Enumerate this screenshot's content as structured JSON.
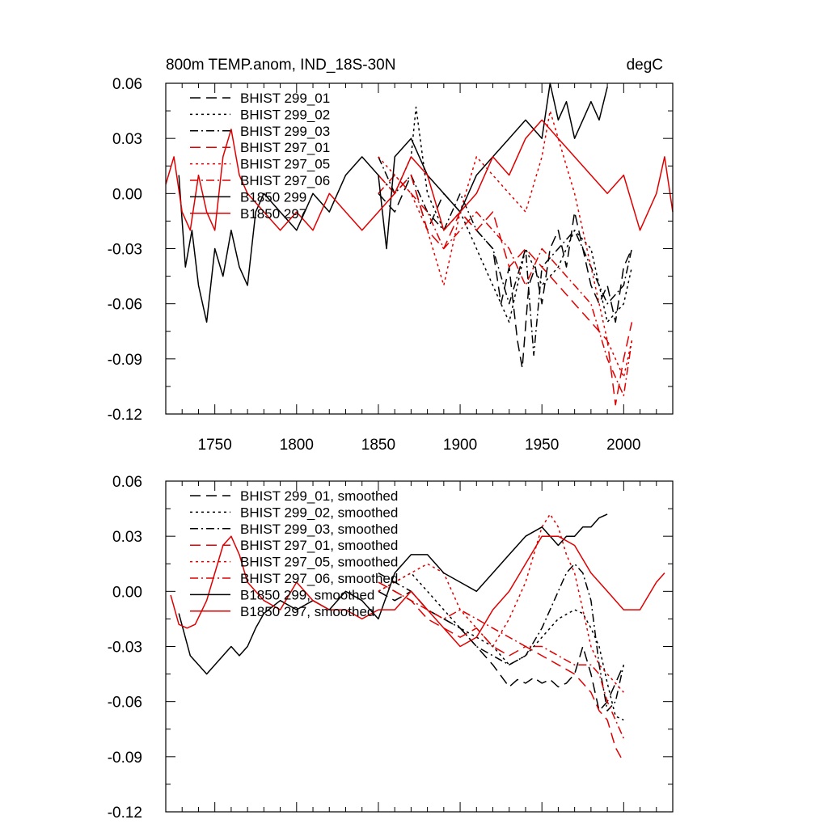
{
  "figure": {
    "title_left": "800m TEMP.anom, IND_18S-30N",
    "title_right": "degC"
  },
  "chart_data": [
    {
      "type": "line",
      "title": "800m TEMP.anom, IND_18S-30N",
      "units": "degC",
      "xlabel": "",
      "ylabel": "",
      "xlim": [
        1720,
        2030
      ],
      "ylim": [
        -0.12,
        0.06
      ],
      "xticks": [
        1750,
        1800,
        1850,
        1900,
        1950,
        2000
      ],
      "xtick_labels": [
        "1750",
        "1800",
        "1850",
        "1900",
        "1950",
        "2000"
      ],
      "yticks": [
        -0.12,
        -0.09,
        -0.06,
        -0.03,
        0.0,
        0.03,
        0.06
      ],
      "ytick_labels": [
        "-0.12",
        "-0.09",
        "-0.06",
        "-0.03",
        "0.00",
        "0.03",
        "0.06"
      ],
      "legend_position": "top-left",
      "series": [
        {
          "name": "BHIST 299_01",
          "color": "#000000",
          "dash": "long-dash",
          "x": [
            1850,
            1860,
            1870,
            1880,
            1890,
            1900,
            1910,
            1920,
            1925,
            1930,
            1935,
            1938,
            1942,
            1946,
            1950,
            1955,
            1960,
            1965,
            1970,
            1975,
            1980,
            1985,
            1990,
            1995,
            2000,
            2005
          ],
          "y": [
            0.0,
            -0.01,
            0.01,
            -0.02,
            0.0,
            -0.01,
            -0.02,
            -0.03,
            -0.06,
            -0.04,
            -0.08,
            -0.095,
            -0.05,
            -0.04,
            -0.06,
            -0.03,
            -0.02,
            -0.04,
            -0.01,
            -0.03,
            -0.05,
            -0.06,
            -0.05,
            -0.07,
            -0.04,
            -0.03
          ]
        },
        {
          "name": "BHIST 299_02",
          "color": "#000000",
          "dash": "dotted",
          "x": [
            1850,
            1860,
            1870,
            1873,
            1880,
            1890,
            1900,
            1910,
            1920,
            1930,
            1940,
            1950,
            1960,
            1970,
            1980,
            1990,
            2000,
            2005
          ],
          "y": [
            0.01,
            0.0,
            0.02,
            0.047,
            0.0,
            -0.02,
            -0.01,
            -0.03,
            -0.05,
            -0.07,
            -0.03,
            -0.05,
            -0.04,
            -0.02,
            -0.03,
            -0.07,
            -0.06,
            -0.04
          ]
        },
        {
          "name": "BHIST 299_03",
          "color": "#000000",
          "dash": "dash-dot",
          "x": [
            1850,
            1860,
            1870,
            1880,
            1890,
            1900,
            1910,
            1920,
            1930,
            1940,
            1945,
            1950,
            1960,
            1970,
            1980,
            1990,
            2000,
            2005
          ],
          "y": [
            0.02,
            0.0,
            0.01,
            -0.01,
            -0.02,
            0.0,
            -0.02,
            -0.03,
            -0.06,
            -0.03,
            -0.088,
            -0.04,
            -0.03,
            -0.02,
            -0.04,
            -0.06,
            -0.05,
            -0.03
          ]
        },
        {
          "name": "BHIST 297_01",
          "color": "#e00000",
          "dash": "long-dash",
          "x": [
            1850,
            1860,
            1870,
            1880,
            1890,
            1900,
            1910,
            1920,
            1930,
            1940,
            1950,
            1960,
            1970,
            1980,
            1990,
            1995,
            2000,
            2005
          ],
          "y": [
            0.01,
            0.0,
            0.01,
            -0.02,
            -0.03,
            -0.01,
            -0.02,
            -0.01,
            -0.04,
            -0.03,
            -0.04,
            -0.05,
            -0.06,
            -0.07,
            -0.08,
            -0.115,
            -0.09,
            -0.07
          ]
        },
        {
          "name": "BHIST 297_05",
          "color": "#e00000",
          "dash": "dotted",
          "x": [
            1850,
            1860,
            1870,
            1880,
            1890,
            1900,
            1910,
            1920,
            1930,
            1940,
            1950,
            1955,
            1960,
            1970,
            1980,
            1990,
            2000,
            2005
          ],
          "y": [
            0.02,
            0.01,
            0.0,
            -0.02,
            -0.05,
            -0.01,
            0.02,
            0.01,
            0.0,
            -0.01,
            0.02,
            0.045,
            0.03,
            0.0,
            -0.04,
            -0.08,
            -0.1,
            -0.08
          ]
        },
        {
          "name": "BHIST 297_06",
          "color": "#e00000",
          "dash": "dash-dot",
          "x": [
            1850,
            1860,
            1870,
            1880,
            1890,
            1900,
            1910,
            1920,
            1930,
            1940,
            1950,
            1960,
            1970,
            1980,
            1990,
            2000,
            2005
          ],
          "y": [
            0.0,
            0.01,
            0.0,
            -0.01,
            -0.03,
            -0.02,
            -0.01,
            -0.02,
            -0.03,
            -0.05,
            -0.03,
            -0.04,
            -0.05,
            -0.06,
            -0.09,
            -0.11,
            -0.08
          ]
        },
        {
          "name": "B1850 299",
          "color": "#000000",
          "dash": "solid",
          "x": [
            1728,
            1732,
            1736,
            1740,
            1745,
            1750,
            1755,
            1760,
            1765,
            1770,
            1775,
            1780,
            1790,
            1800,
            1810,
            1820,
            1830,
            1840,
            1850,
            1855,
            1860,
            1870,
            1880,
            1890,
            1900,
            1910,
            1920,
            1930,
            1940,
            1950,
            1955,
            1960,
            1965,
            1970,
            1975,
            1980,
            1985,
            1990
          ],
          "y": [
            0.01,
            -0.04,
            -0.02,
            -0.05,
            -0.07,
            -0.03,
            -0.045,
            -0.02,
            -0.04,
            -0.05,
            -0.01,
            0.0,
            -0.01,
            -0.02,
            0.0,
            -0.01,
            0.01,
            0.02,
            0.01,
            -0.03,
            0.02,
            0.03,
            0.01,
            0.0,
            -0.01,
            0.01,
            0.02,
            0.03,
            0.04,
            0.03,
            0.06,
            0.04,
            0.05,
            0.03,
            0.04,
            0.05,
            0.04,
            0.058
          ]
        },
        {
          "name": "B1850 297",
          "color": "#e00000",
          "dash": "solid",
          "x": [
            1720,
            1725,
            1730,
            1735,
            1740,
            1745,
            1750,
            1755,
            1760,
            1765,
            1770,
            1780,
            1790,
            1800,
            1810,
            1820,
            1830,
            1840,
            1850,
            1860,
            1870,
            1880,
            1890,
            1900,
            1910,
            1920,
            1930,
            1940,
            1950,
            1960,
            1970,
            1980,
            1990,
            2000,
            2010,
            2020,
            2025,
            2030
          ],
          "y": [
            0.005,
            0.02,
            -0.01,
            -0.02,
            0.01,
            -0.01,
            -0.02,
            0.02,
            0.035,
            0.01,
            0.0,
            -0.01,
            -0.02,
            -0.01,
            -0.02,
            0.0,
            -0.01,
            -0.02,
            -0.01,
            0.0,
            0.02,
            0.01,
            -0.02,
            -0.01,
            0.0,
            0.02,
            0.01,
            0.03,
            0.04,
            0.03,
            0.02,
            0.01,
            0.0,
            0.01,
            -0.02,
            0.0,
            0.02,
            -0.01
          ]
        }
      ]
    },
    {
      "type": "line",
      "title": "",
      "xlabel": "",
      "ylabel": "",
      "xlim": [
        1720,
        2030
      ],
      "ylim": [
        -0.12,
        0.06
      ],
      "xticks": [
        1750,
        1800,
        1850,
        1900,
        1950,
        2000
      ],
      "xtick_labels": [],
      "yticks": [
        -0.12,
        -0.09,
        -0.06,
        -0.03,
        0.0,
        0.03,
        0.06
      ],
      "ytick_labels": [
        "-0.12",
        "-0.09",
        "-0.06",
        "-0.03",
        "0.00",
        "0.03",
        "0.06"
      ],
      "legend_position": "top-left",
      "series": [
        {
          "name": "BHIST 299_01, smoothed",
          "color": "#000000",
          "dash": "long-dash",
          "x": [
            1850,
            1860,
            1870,
            1880,
            1890,
            1900,
            1910,
            1920,
            1930,
            1935,
            1940,
            1945,
            1950,
            1955,
            1960,
            1965,
            1970,
            1975,
            1980,
            1985,
            1990,
            1995,
            2000
          ],
          "y": [
            0.0,
            -0.005,
            0.0,
            -0.01,
            -0.015,
            -0.02,
            -0.03,
            -0.04,
            -0.052,
            -0.048,
            -0.05,
            -0.047,
            -0.05,
            -0.048,
            -0.052,
            -0.05,
            -0.045,
            -0.03,
            -0.045,
            -0.065,
            -0.06,
            -0.05,
            -0.04
          ]
        },
        {
          "name": "BHIST 299_02, smoothed",
          "color": "#000000",
          "dash": "dotted",
          "x": [
            1850,
            1860,
            1870,
            1880,
            1890,
            1900,
            1910,
            1920,
            1930,
            1940,
            1950,
            1960,
            1970,
            1975,
            1980,
            1985,
            1990,
            1995,
            2000
          ],
          "y": [
            0.0,
            0.005,
            0.01,
            0.0,
            -0.01,
            -0.02,
            -0.025,
            -0.03,
            -0.04,
            -0.035,
            -0.025,
            -0.015,
            -0.01,
            -0.012,
            -0.02,
            -0.03,
            -0.05,
            -0.068,
            -0.07
          ]
        },
        {
          "name": "BHIST 299_03, smoothed",
          "color": "#000000",
          "dash": "dash-dot",
          "x": [
            1850,
            1860,
            1870,
            1880,
            1890,
            1900,
            1910,
            1920,
            1930,
            1940,
            1950,
            1960,
            1965,
            1970,
            1975,
            1980,
            1985,
            1990,
            1995,
            2000
          ],
          "y": [
            0.01,
            0.005,
            0.0,
            -0.01,
            -0.015,
            -0.02,
            -0.03,
            -0.035,
            -0.04,
            -0.035,
            -0.02,
            0.0,
            0.01,
            0.015,
            0.01,
            -0.005,
            -0.04,
            -0.065,
            -0.06,
            -0.04
          ]
        },
        {
          "name": "BHIST 297_01, smoothed",
          "color": "#e00000",
          "dash": "long-dash",
          "x": [
            1850,
            1860,
            1870,
            1880,
            1890,
            1900,
            1910,
            1920,
            1930,
            1940,
            1950,
            1960,
            1970,
            1975,
            1980,
            1985,
            1990,
            1995,
            2000
          ],
          "y": [
            0.005,
            0.0,
            -0.005,
            -0.015,
            -0.02,
            -0.025,
            -0.02,
            -0.03,
            -0.035,
            -0.03,
            -0.035,
            -0.04,
            -0.045,
            -0.05,
            -0.055,
            -0.065,
            -0.07,
            -0.085,
            -0.093
          ]
        },
        {
          "name": "BHIST 297_05, smoothed",
          "color": "#e00000",
          "dash": "dotted",
          "x": [
            1850,
            1860,
            1870,
            1880,
            1890,
            1900,
            1910,
            1920,
            1930,
            1940,
            1950,
            1955,
            1960,
            1965,
            1970,
            1975,
            1980,
            1985,
            1990,
            1995,
            2000
          ],
          "y": [
            0.0,
            0.005,
            0.01,
            0.015,
            0.01,
            -0.01,
            -0.02,
            -0.03,
            -0.015,
            0.005,
            0.035,
            0.042,
            0.035,
            0.02,
            0.01,
            -0.01,
            -0.03,
            -0.04,
            -0.045,
            -0.05,
            -0.055
          ]
        },
        {
          "name": "BHIST 297_06, smoothed",
          "color": "#e00000",
          "dash": "dash-dot",
          "x": [
            1850,
            1860,
            1870,
            1880,
            1890,
            1900,
            1910,
            1920,
            1930,
            1940,
            1950,
            1960,
            1970,
            1980,
            1985,
            1990,
            1995,
            2000
          ],
          "y": [
            0.005,
            0.0,
            -0.005,
            -0.01,
            -0.015,
            -0.01,
            -0.015,
            -0.02,
            -0.025,
            -0.03,
            -0.03,
            -0.035,
            -0.04,
            -0.04,
            -0.045,
            -0.06,
            -0.07,
            -0.08
          ]
        },
        {
          "name": "B1850 299, smoothed",
          "color": "#000000",
          "dash": "solid",
          "x": [
            1728,
            1735,
            1740,
            1745,
            1750,
            1755,
            1760,
            1765,
            1770,
            1775,
            1780,
            1790,
            1800,
            1810,
            1820,
            1830,
            1840,
            1850,
            1860,
            1870,
            1880,
            1890,
            1900,
            1910,
            1920,
            1930,
            1940,
            1950,
            1960,
            1965,
            1970,
            1975,
            1980,
            1985,
            1990
          ],
          "y": [
            -0.012,
            -0.035,
            -0.04,
            -0.045,
            -0.04,
            -0.035,
            -0.03,
            -0.035,
            -0.03,
            -0.02,
            -0.012,
            -0.005,
            -0.01,
            -0.005,
            -0.01,
            0.0,
            -0.005,
            -0.015,
            0.01,
            0.02,
            0.02,
            0.01,
            0.005,
            0.0,
            0.01,
            0.02,
            0.03,
            0.035,
            0.025,
            0.03,
            0.03,
            0.035,
            0.035,
            0.04,
            0.042
          ]
        },
        {
          "name": "B1850 297, smoothed",
          "color": "#e00000",
          "dash": "solid",
          "x": [
            1723,
            1728,
            1733,
            1738,
            1745,
            1750,
            1755,
            1760,
            1765,
            1770,
            1780,
            1790,
            1800,
            1810,
            1820,
            1830,
            1840,
            1850,
            1860,
            1870,
            1880,
            1890,
            1900,
            1910,
            1920,
            1930,
            1940,
            1950,
            1960,
            1970,
            1980,
            1990,
            2000,
            2010,
            2020,
            2025
          ],
          "y": [
            -0.002,
            -0.018,
            -0.02,
            -0.018,
            -0.005,
            0.01,
            0.025,
            0.03,
            0.02,
            0.005,
            -0.005,
            -0.01,
            0.005,
            -0.005,
            -0.01,
            -0.01,
            -0.015,
            -0.01,
            -0.01,
            0.0,
            -0.01,
            -0.02,
            -0.03,
            -0.025,
            -0.01,
            0.0,
            0.015,
            0.03,
            0.03,
            0.025,
            0.01,
            0.0,
            -0.01,
            -0.01,
            0.005,
            0.01
          ]
        }
      ]
    }
  ]
}
